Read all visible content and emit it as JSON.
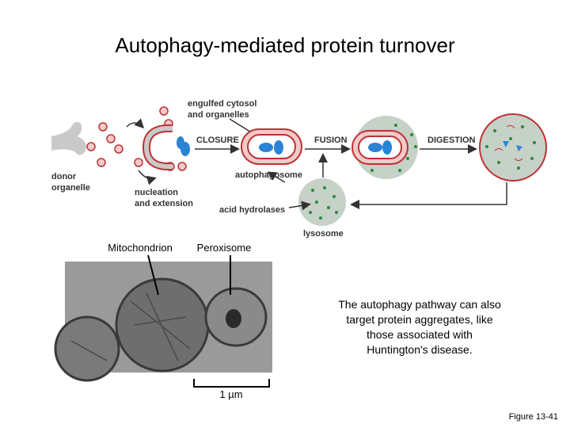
{
  "title": "Autophagy-mediated protein turnover",
  "diagram": {
    "donor_organelle": [
      "donor",
      "organelle"
    ],
    "engulfed": [
      "engulfed cytosol",
      "and organelles"
    ],
    "nucleation": [
      "nucleation",
      "and extension"
    ],
    "closure": "CLOSURE",
    "autophagosome": "autophagosome",
    "fusion": "FUSION",
    "digestion": "DIGESTION",
    "acid_hydrolases": "acid hydrolases",
    "lysosome": "lysosome"
  },
  "micrograph": {
    "labels": [
      "Mitochondrion",
      "Peroxisome"
    ],
    "scale_bar": "1 µm"
  },
  "caption": [
    "The autophagy pathway can also",
    "target protein aggregates, like",
    "those associated with",
    "Huntington's disease."
  ],
  "figure_label": "Figure 13-41"
}
